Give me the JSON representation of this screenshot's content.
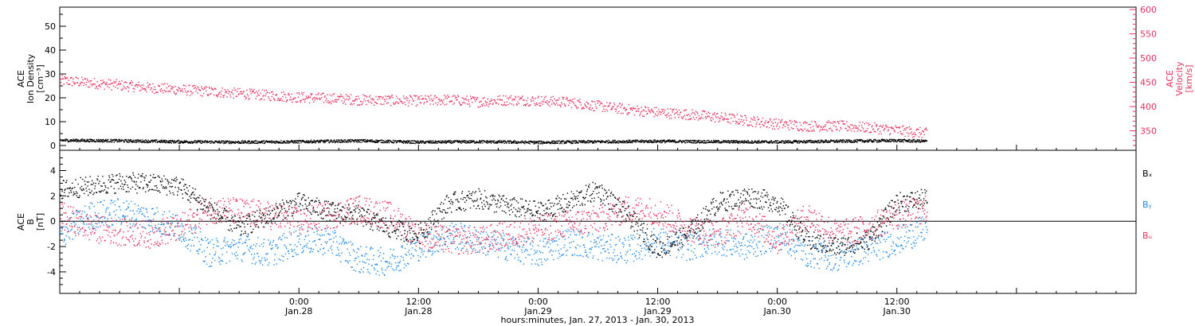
{
  "chart_data": [
    {
      "type": "scatter",
      "panel": "top",
      "ylabel_left": [
        "ACE",
        "Ion Density",
        "[cm⁻³]"
      ],
      "ylabel_right": [
        "ACE",
        "Velocity",
        "[km/s]"
      ],
      "ylim_left": [
        -2,
        58
      ],
      "yticks_left": [
        "0",
        "10",
        "20",
        "30",
        "40",
        "50"
      ],
      "ylim_right": [
        310,
        605
      ],
      "yticks_right": [
        "350",
        "400",
        "450",
        "500",
        "550",
        "600"
      ],
      "series": [
        {
          "axis": "left",
          "color": "#000000",
          "x": [
            0,
            6,
            12,
            18,
            24,
            30,
            36,
            42,
            48,
            54,
            60,
            66,
            72,
            78,
            84,
            87
          ],
          "values": [
            2.4,
            2.2,
            1.8,
            1.6,
            1.8,
            2.2,
            1.6,
            1.8,
            1.5,
            1.8,
            2.0,
            1.8,
            1.7,
            2.0,
            2.3,
            2.0
          ]
        },
        {
          "axis": "right",
          "color": "#e8305c",
          "x": [
            0,
            3,
            6,
            9,
            12,
            15,
            18,
            21,
            24,
            27,
            30,
            33,
            36,
            39,
            42,
            45,
            48,
            51,
            54,
            57,
            60,
            63,
            66,
            69,
            72,
            75,
            78,
            81,
            84,
            87
          ],
          "values": [
            455,
            450,
            445,
            440,
            436,
            432,
            428,
            424,
            420,
            418,
            415,
            414,
            413,
            415,
            411,
            415,
            413,
            410,
            402,
            395,
            389,
            385,
            379,
            372,
            365,
            361,
            361,
            358,
            352,
            346
          ]
        }
      ]
    },
    {
      "type": "scatter",
      "panel": "bottom",
      "ylabel": [
        "ACE",
        "B",
        "[nT]"
      ],
      "ylim": [
        -5.7,
        5.6
      ],
      "yticks": [
        "-4",
        "-2",
        "0",
        "2",
        "4"
      ],
      "series": [
        {
          "name": "Bₓ",
          "color": "#000000",
          "x": [
            0,
            3,
            6,
            9,
            12,
            15,
            18,
            21,
            24,
            27,
            30,
            33,
            36,
            39,
            42,
            45,
            48,
            51,
            54,
            57,
            60,
            63,
            66,
            69,
            72,
            75,
            78,
            81,
            84,
            87
          ],
          "values": [
            2.5,
            2.8,
            3.1,
            3.0,
            2.8,
            1.0,
            -0.5,
            0.5,
            1.5,
            0.8,
            0.5,
            -0.5,
            -1.0,
            1.5,
            1.8,
            1.2,
            0.8,
            1.5,
            2.5,
            0.5,
            -2.2,
            -1.0,
            1.5,
            2.0,
            1.5,
            -1.5,
            -2.0,
            -1.5,
            1.5,
            1.8
          ]
        },
        {
          "name": "Bᵧ",
          "color": "#1e88e5",
          "x": [
            0,
            3,
            6,
            9,
            12,
            15,
            18,
            21,
            24,
            27,
            30,
            33,
            36,
            39,
            42,
            45,
            48,
            51,
            54,
            57,
            60,
            63,
            66,
            69,
            72,
            75,
            78,
            81,
            84,
            87
          ],
          "values": [
            -1.0,
            0.5,
            0.8,
            0.3,
            -0.5,
            -2.5,
            -2.0,
            -2.5,
            -1.5,
            -1.5,
            -3.0,
            -3.2,
            -2.0,
            -1.0,
            -1.5,
            -2.0,
            -2.5,
            -1.5,
            -2.0,
            -2.2,
            -1.5,
            -2.0,
            -1.5,
            -2.0,
            -1.0,
            -2.5,
            -2.8,
            -2.2,
            -1.5,
            -0.5
          ]
        },
        {
          "name": "Bᵤ",
          "color": "#e8305c",
          "x": [
            0,
            3,
            6,
            9,
            12,
            15,
            18,
            21,
            24,
            27,
            30,
            33,
            36,
            39,
            42,
            45,
            48,
            51,
            54,
            57,
            60,
            63,
            66,
            69,
            72,
            75,
            78,
            81,
            84,
            87
          ],
          "values": [
            0.5,
            -0.5,
            -0.8,
            -1.0,
            -0.5,
            1.0,
            0.8,
            0.5,
            0.0,
            0.5,
            1.0,
            0.5,
            -1.0,
            -1.5,
            -1.5,
            -1.0,
            -0.5,
            -0.2,
            0.2,
            1.0,
            0.8,
            -0.5,
            -1.0,
            0.5,
            -1.5,
            0.5,
            -1.0,
            -0.5,
            0.5,
            1.0
          ]
        }
      ]
    }
  ],
  "x_axis": {
    "ticks": [
      {
        "hour": 24,
        "time": "0:00",
        "date": "Jan.28"
      },
      {
        "hour": 36,
        "time": "12:00",
        "date": "Jan.28"
      },
      {
        "hour": 48,
        "time": "0:00",
        "date": "Jan.29"
      },
      {
        "hour": 60,
        "time": "12:00",
        "date": "Jan.29"
      },
      {
        "hour": 72,
        "time": "0:00",
        "date": "Jan.30"
      },
      {
        "hour": 84,
        "time": "12:00",
        "date": "Jan.30"
      }
    ],
    "range": [
      0,
      108
    ],
    "label": "hours:minutes, Jan. 27, 2013 - Jan. 30, 2013"
  },
  "legend": {
    "bx": "Bₓ",
    "by": "Bᵧ",
    "bz": "Bᵤ",
    "colors": {
      "bx": "#000000",
      "by": "#1e88e5",
      "bz": "#e8305c"
    }
  },
  "accent_colors": {
    "velocity": "#e8305c",
    "by": "#1e88e5",
    "density": "#000000"
  }
}
